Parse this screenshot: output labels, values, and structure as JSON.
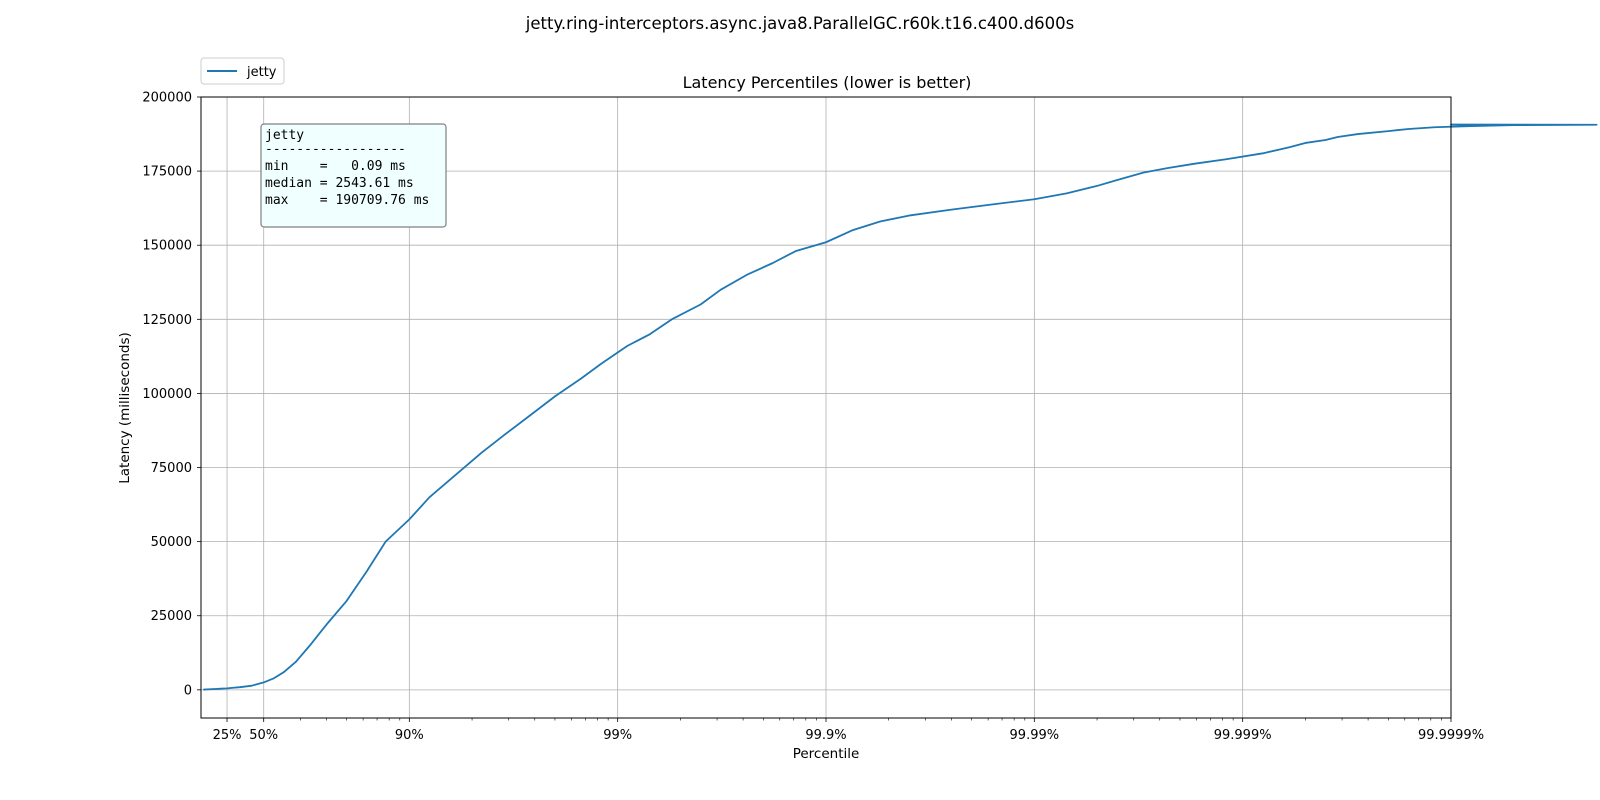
{
  "chart_data": {
    "type": "line",
    "suptitle": "jetty.ring-interceptors.async.java8.ParallelGC.r60k.t16.c400.d600s",
    "title": "Latency Percentiles (lower is better)",
    "xlabel": "Percentile",
    "ylabel": "Latency (milliseconds)",
    "x_scale": "log of 1/(1-percentile); x given as percentile fraction",
    "xlim": [
      0.0,
      0.999999
    ],
    "ylim": [
      -9500,
      200000
    ],
    "grid": true,
    "x_ticks": [
      {
        "value": 0.25,
        "label": "25%"
      },
      {
        "value": 0.5,
        "label": "50%"
      },
      {
        "value": 0.9,
        "label": "90%"
      },
      {
        "value": 0.99,
        "label": "99%"
      },
      {
        "value": 0.999,
        "label": "99.9%"
      },
      {
        "value": 0.9999,
        "label": "99.99%"
      },
      {
        "value": 0.99999,
        "label": "99.999%"
      },
      {
        "value": 0.999999,
        "label": "99.9999%"
      }
    ],
    "y_ticks": [
      {
        "value": 0,
        "label": "0"
      },
      {
        "value": 25000,
        "label": "25000"
      },
      {
        "value": 50000,
        "label": "50000"
      },
      {
        "value": 75000,
        "label": "75000"
      },
      {
        "value": 100000,
        "label": "100000"
      },
      {
        "value": 125000,
        "label": "125000"
      },
      {
        "value": 150000,
        "label": "150000"
      },
      {
        "value": 175000,
        "label": "175000"
      },
      {
        "value": 200000,
        "label": "200000"
      }
    ],
    "legend": {
      "placement": "top-left outside",
      "entries": [
        "jetty"
      ]
    },
    "stats_box": {
      "placement": "top-left",
      "lines": [
        "jetty",
        "------------------",
        "min    =   0.09 ms",
        "median = 2543.61 ms",
        "max    = 190709.76 ms"
      ]
    },
    "series": [
      {
        "name": "jetty",
        "color": "#1f77b4",
        "points": [
          [
            0.032,
            100
          ],
          [
            0.09,
            200
          ],
          [
            0.16,
            300
          ],
          [
            0.22,
            450
          ],
          [
            0.25,
            500
          ],
          [
            0.3,
            700
          ],
          [
            0.35,
            900
          ],
          [
            0.43,
            1400
          ],
          [
            0.5,
            2500
          ],
          [
            0.55,
            3800
          ],
          [
            0.6,
            6000
          ],
          [
            0.65,
            9500
          ],
          [
            0.7,
            15000
          ],
          [
            0.75,
            22000
          ],
          [
            0.8,
            30000
          ],
          [
            0.84,
            40000
          ],
          [
            0.87,
            50000
          ],
          [
            0.9,
            57500
          ],
          [
            0.92,
            65000
          ],
          [
            0.94,
            72500
          ],
          [
            0.955,
            80000
          ],
          [
            0.965,
            86000
          ],
          [
            0.973,
            92000
          ],
          [
            0.98,
            99000
          ],
          [
            0.985,
            105000
          ],
          [
            0.988,
            110000
          ],
          [
            0.991,
            116000
          ],
          [
            0.993,
            120000
          ],
          [
            0.9945,
            125000
          ],
          [
            0.996,
            130000
          ],
          [
            0.9968,
            135000
          ],
          [
            0.9976,
            140000
          ],
          [
            0.9982,
            144000
          ],
          [
            0.9986,
            148000
          ],
          [
            0.999,
            151000
          ],
          [
            0.99925,
            155000
          ],
          [
            0.99945,
            158000
          ],
          [
            0.9996,
            160000
          ],
          [
            0.99975,
            162000
          ],
          [
            0.99985,
            164000
          ],
          [
            0.9999,
            165500
          ],
          [
            0.99993,
            167500
          ],
          [
            0.99995,
            170000
          ],
          [
            0.99996,
            172000
          ],
          [
            0.99997,
            174500
          ],
          [
            0.999977,
            176000
          ],
          [
            0.999983,
            177500
          ],
          [
            0.999988,
            179000
          ],
          [
            0.999992,
            181000
          ],
          [
            0.999994,
            183000
          ],
          [
            0.999995,
            184500
          ],
          [
            0.999996,
            185500
          ],
          [
            0.9999965,
            186500
          ],
          [
            0.9999972,
            187500
          ],
          [
            0.999998,
            188500
          ],
          [
            0.9999984,
            189200
          ],
          [
            0.9999988,
            189800
          ],
          [
            0.9999992,
            190200
          ],
          [
            0.9999995,
            190500
          ],
          [
            0.9999998,
            190650
          ],
          [
            0.999999,
            190709.76
          ]
        ]
      }
    ]
  }
}
